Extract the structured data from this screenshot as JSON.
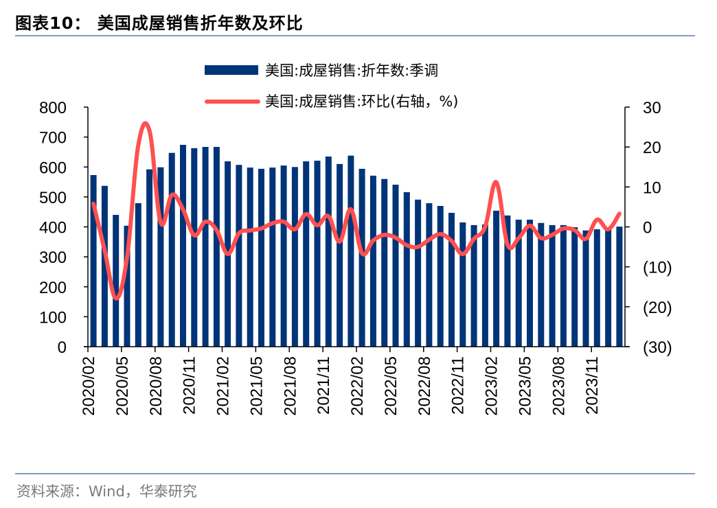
{
  "header": {
    "title": "图表10：  美国成屋销售折年数及环比"
  },
  "footer": {
    "source": "资料来源：Wind，华泰研究"
  },
  "colors": {
    "bar": "#003478",
    "line": "#ff5050",
    "rule": "#7f9cc4",
    "axis": "#000000"
  },
  "chart_data": {
    "type": "bar+line",
    "title": "美国成屋销售折年数及环比",
    "legend_position": "top-center",
    "legend": [
      {
        "name": "美国:成屋销售:折年数:季调",
        "kind": "bar",
        "axis": "left"
      },
      {
        "name": "美国:成屋销售:环比(右轴，%)",
        "kind": "line",
        "axis": "right"
      }
    ],
    "categories": [
      "2020/02",
      "2020/03",
      "2020/04",
      "2020/05",
      "2020/06",
      "2020/07",
      "2020/08",
      "2020/09",
      "2020/10",
      "2020/11",
      "2020/12",
      "2021/01",
      "2021/02",
      "2021/03",
      "2021/04",
      "2021/05",
      "2021/06",
      "2021/07",
      "2021/08",
      "2021/09",
      "2021/10",
      "2021/11",
      "2021/12",
      "2022/01",
      "2022/02",
      "2022/03",
      "2022/04",
      "2022/05",
      "2022/06",
      "2022/07",
      "2022/08",
      "2022/09",
      "2022/10",
      "2022/11",
      "2022/12",
      "2023/01",
      "2023/02",
      "2023/03",
      "2023/04",
      "2023/05",
      "2023/06",
      "2023/07",
      "2023/08",
      "2023/09",
      "2023/10",
      "2023/11",
      "2023/12",
      "2024/01"
    ],
    "x_tick_labels": [
      "2020/02",
      "2020/05",
      "2020/08",
      "2020/11",
      "2021/02",
      "2021/05",
      "2021/08",
      "2021/11",
      "2022/02",
      "2022/05",
      "2022/08",
      "2022/11",
      "2023/02",
      "2023/05",
      "2023/08",
      "2023/11"
    ],
    "series": [
      {
        "name": "美国:成屋销售:折年数:季调",
        "type": "bar",
        "axis": "left",
        "values": [
          573,
          537,
          440,
          404,
          479,
          592,
          599,
          647,
          674,
          663,
          667,
          667,
          619,
          607,
          598,
          594,
          598,
          605,
          600,
          619,
          621,
          635,
          610,
          638,
          594,
          571,
          560,
          541,
          516,
          491,
          479,
          470,
          447,
          415,
          406,
          408,
          454,
          438,
          424,
          424,
          413,
          406,
          406,
          399,
          388,
          392,
          390,
          401
        ]
      },
      {
        "name": "美国:成屋销售:环比(右轴，%)",
        "type": "line",
        "axis": "right",
        "values": [
          5.8,
          -5.9,
          -17.9,
          -7.6,
          20.4,
          24.1,
          1.1,
          8.0,
          4.4,
          -2.1,
          1.3,
          -0.8,
          -6.8,
          -1.6,
          -0.9,
          -0.4,
          0.9,
          1.3,
          -0.6,
          3.2,
          0.4,
          2.7,
          -3.7,
          4.4,
          -6.6,
          -3.4,
          -2.0,
          -2.7,
          -4.6,
          -5.0,
          -3.2,
          -1.8,
          -3.5,
          -6.8,
          -3.0,
          0.0,
          11.2,
          -4.4,
          -2.8,
          0.3,
          -2.8,
          -2.0,
          -0.4,
          -0.8,
          -3.0,
          1.8,
          -0.6,
          3.3
        ]
      }
    ],
    "left_axis": {
      "ylim": [
        0,
        800
      ],
      "ticks": [
        0,
        100,
        200,
        300,
        400,
        500,
        600,
        700,
        800
      ],
      "tick_labels": [
        "0",
        "100",
        "200",
        "300",
        "400",
        "500",
        "600",
        "700",
        "800"
      ]
    },
    "right_axis": {
      "ylim": [
        -30,
        30
      ],
      "ticks": [
        -30,
        -20,
        -10,
        0,
        10,
        20,
        30
      ],
      "tick_labels": [
        "(30)",
        "(20)",
        "(10)",
        "0",
        "10",
        "20",
        "30"
      ]
    },
    "grid": false
  }
}
